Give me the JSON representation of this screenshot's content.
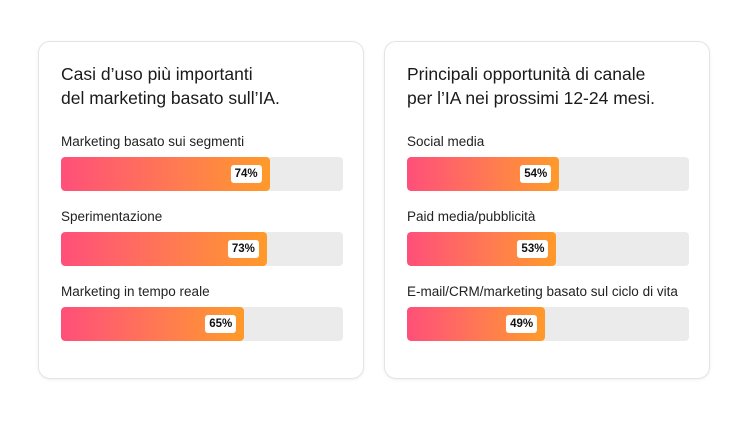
{
  "chart_data": [
    {
      "type": "bar",
      "title": "Casi d’uso più importanti del marketing basato sull’IA.",
      "title_lines": [
        "Casi d’uso più importanti",
        "del marketing basato sull’IA."
      ],
      "categories": [
        "Marketing basato sui segmenti",
        "Sperimentazione",
        "Marketing in tempo reale"
      ],
      "values": [
        74,
        73,
        65
      ],
      "value_labels": [
        "74%",
        "73%",
        "65%"
      ],
      "unit": "%",
      "xlim": [
        0,
        100
      ],
      "orientation": "horizontal"
    },
    {
      "type": "bar",
      "title": "Principali opportunità di canale per l’IA nei prossimi 12-24 mesi.",
      "title_lines": [
        "Principali opportunità di canale",
        "per l’IA nei prossimi 12-24 mesi."
      ],
      "categories": [
        "Social media",
        "Paid media/pubblicità",
        "E-mail/CRM/marketing basato sul ciclo di vita"
      ],
      "values": [
        54,
        53,
        49
      ],
      "value_labels": [
        "54%",
        "53%",
        "49%"
      ],
      "unit": "%",
      "xlim": [
        0,
        100
      ],
      "orientation": "horizontal"
    }
  ],
  "colors": {
    "bar_gradient_start": "#ff4f7a",
    "bar_gradient_end": "#ff9a2a",
    "track": "#ebebeb",
    "card_border": "#e4e4e4"
  }
}
